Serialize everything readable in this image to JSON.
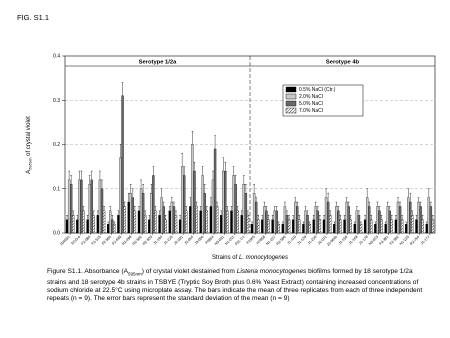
{
  "figure_label": "FIG. S1.1",
  "chart_data": {
    "type": "grouped_bar",
    "y_label": [
      "A",
      "595nm",
      " of crystal violet"
    ],
    "x_label": [
      "Strains of ",
      "L. monocytogenes"
    ],
    "groups": [
      {
        "name": "Serotype 1/2a",
        "categories": [
          "10403S",
          "EGD-e",
          "F2-086",
          "F2-515",
          "F2-586",
          "F2-695",
          "R2-499",
          "R2-502",
          "R2-503",
          "J1-194",
          "J1-225",
          "J2-031",
          "J2-064",
          "J3-006",
          "F6854",
          "N3-031",
          "N1-011",
          "FSL C1"
        ]
      },
      {
        "name": "Serotype 4b",
        "categories": [
          "F2365",
          "H7858",
          "N1-227",
          "R2-500",
          "J1-110",
          "J1-129",
          "J1-220",
          "J2-071",
          "J2-064b",
          "J1-158",
          "J1-168",
          "J1-179",
          "N3-013",
          "F2-381",
          "F2-382",
          "N1-225",
          "R2-764",
          "J1-177"
        ]
      }
    ],
    "series": [
      {
        "name": "0.5% NaCl (Ctr.)",
        "color": "#000000",
        "values": [
          0.03,
          0.03,
          0.03,
          0.04,
          0.02,
          0.04,
          0.07,
          0.05,
          0.03,
          0.04,
          0.05,
          0.03,
          0.06,
          0.05,
          0.06,
          0.04,
          0.05,
          0.04,
          0.02,
          0.03,
          0.03,
          0.02,
          0.03,
          0.02,
          0.03,
          0.03,
          0.02,
          0.03,
          0.02,
          0.03,
          0.02,
          0.02,
          0.03,
          0.02,
          0.03,
          0.02
        ],
        "errors": [
          0.01,
          0.01,
          0.01,
          0.01,
          0.005,
          0.01,
          0.02,
          0.01,
          0.01,
          0.01,
          0.01,
          0.01,
          0.02,
          0.01,
          0.02,
          0.01,
          0.01,
          0.01,
          0.005,
          0.01,
          0.01,
          0.005,
          0.01,
          0.005,
          0.01,
          0.01,
          0.005,
          0.01,
          0.005,
          0.01,
          0.005,
          0.005,
          0.01,
          0.005,
          0.01,
          0.005
        ]
      },
      {
        "name": "2.0% NaCl",
        "color": "#c8c8c8",
        "values": [
          0.12,
          0.12,
          0.11,
          0.12,
          0.05,
          0.17,
          0.09,
          0.1,
          0.09,
          0.08,
          0.07,
          0.15,
          0.2,
          0.13,
          0.12,
          0.14,
          0.13,
          0.11,
          0.09,
          0.06,
          0.05,
          0.06,
          0.07,
          0.05,
          0.06,
          0.08,
          0.06,
          0.07,
          0.05,
          0.08,
          0.06,
          0.06,
          0.07,
          0.08,
          0.07,
          0.08
        ],
        "errors": [
          0.02,
          0.02,
          0.02,
          0.02,
          0.01,
          0.03,
          0.02,
          0.02,
          0.02,
          0.02,
          0.01,
          0.03,
          0.03,
          0.02,
          0.02,
          0.03,
          0.02,
          0.02,
          0.02,
          0.01,
          0.01,
          0.01,
          0.01,
          0.01,
          0.01,
          0.02,
          0.01,
          0.01,
          0.01,
          0.02,
          0.01,
          0.01,
          0.01,
          0.02,
          0.01,
          0.02
        ]
      },
      {
        "name": "5.0% NaCl",
        "color": "#686868",
        "values": [
          0.11,
          0.12,
          0.12,
          0.1,
          0.03,
          0.31,
          0.08,
          0.09,
          0.13,
          0.06,
          0.06,
          0.13,
          0.14,
          0.09,
          0.19,
          0.14,
          0.11,
          0.09,
          0.07,
          0.05,
          0.05,
          0.04,
          0.06,
          0.04,
          0.05,
          0.07,
          0.05,
          0.06,
          0.04,
          0.06,
          0.05,
          0.05,
          0.06,
          0.07,
          0.06,
          0.06
        ],
        "errors": [
          0.02,
          0.02,
          0.02,
          0.02,
          0.01,
          0.03,
          0.02,
          0.02,
          0.02,
          0.01,
          0.01,
          0.02,
          0.02,
          0.02,
          0.03,
          0.02,
          0.02,
          0.02,
          0.01,
          0.01,
          0.01,
          0.01,
          0.01,
          0.01,
          0.01,
          0.02,
          0.01,
          0.01,
          0.01,
          0.01,
          0.01,
          0.01,
          0.01,
          0.02,
          0.01,
          0.01
        ]
      },
      {
        "name": "7.0% NaCl",
        "color": "#ffffff",
        "pattern": "hatch",
        "values": [
          0.04,
          0.05,
          0.04,
          0.05,
          0.02,
          0.06,
          0.05,
          0.04,
          0.05,
          0.03,
          0.04,
          0.05,
          0.06,
          0.05,
          0.06,
          0.05,
          0.05,
          0.04,
          0.03,
          0.03,
          0.02,
          0.03,
          0.03,
          0.02,
          0.03,
          0.04,
          0.03,
          0.03,
          0.02,
          0.03,
          0.03,
          0.03,
          0.03,
          0.04,
          0.03,
          0.03
        ],
        "errors": [
          0.01,
          0.01,
          0.01,
          0.01,
          0.005,
          0.01,
          0.01,
          0.01,
          0.01,
          0.01,
          0.01,
          0.01,
          0.01,
          0.01,
          0.01,
          0.01,
          0.01,
          0.01,
          0.01,
          0.01,
          0.005,
          0.01,
          0.01,
          0.005,
          0.01,
          0.01,
          0.01,
          0.01,
          0.005,
          0.01,
          0.01,
          0.01,
          0.01,
          0.01,
          0.01,
          0.01
        ]
      }
    ],
    "ylim": [
      0,
      0.4
    ],
    "yticks": [
      {
        "value": 0,
        "label": "0.0"
      },
      0.1,
      0.2,
      0.3,
      0.4
    ],
    "grid": true,
    "legend": "upper-right"
  },
  "caption": [
    "Figure S1.1. Absorbance (A",
    "595nm",
    ") of crystal violet destained from ",
    "Listeria monocytogenes",
    " biofilms formed by 18 serotype 1/2a strains and 18 serotype 4b strains in TSBYE (Tryptic Soy Broth plus 0.6% Yeast Extract) containing increased concentrations of sodium chloride at 22.5°C using microplate assay. The bars indicate the mean of three replicates from each of three independent repeats (n = 9). The error bars represent the standard deviation of the mean (n = 9)"
  ]
}
